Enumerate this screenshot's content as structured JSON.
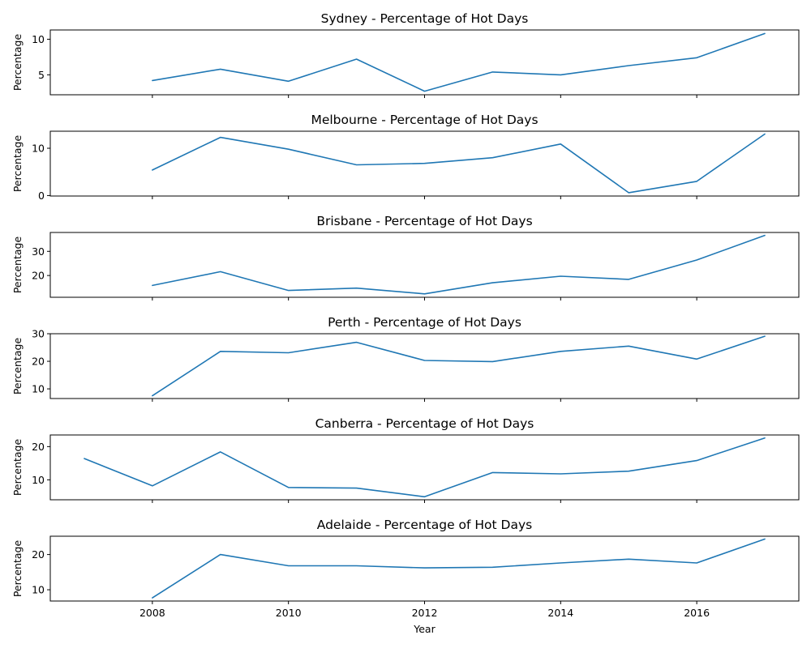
{
  "chart_data": {
    "type": "line",
    "xlabel": "Year",
    "xlim": [
      2006.5,
      2017.5
    ],
    "x_ticks": [
      2008,
      2010,
      2012,
      2014,
      2016
    ],
    "line_color": "#1f77b4",
    "shared_x": true,
    "panels": [
      {
        "title": "Sydney - Percentage of Hot Days",
        "ylabel": "Percentage",
        "ylim": [
          2.2,
          11.3
        ],
        "y_ticks": [
          5,
          10
        ],
        "x": [
          2008,
          2009,
          2010,
          2011,
          2012,
          2013,
          2014,
          2015,
          2016,
          2017
        ],
        "values": [
          4.2,
          5.8,
          4.1,
          7.2,
          2.7,
          5.4,
          5.0,
          6.3,
          7.4,
          10.8
        ]
      },
      {
        "title": "Melbourne - Percentage of Hot Days",
        "ylabel": "Percentage",
        "ylim": [
          -0.1,
          13.6
        ],
        "y_ticks": [
          0,
          10
        ],
        "x": [
          2008,
          2009,
          2010,
          2011,
          2012,
          2013,
          2014,
          2015,
          2016,
          2017
        ],
        "values": [
          5.4,
          12.3,
          9.8,
          6.5,
          6.8,
          8.0,
          10.9,
          0.6,
          3.0,
          13.0
        ]
      },
      {
        "title": "Brisbane - Percentage of Hot Days",
        "ylabel": "Percentage",
        "ylim": [
          11.0,
          37.8
        ],
        "y_ticks": [
          20,
          30
        ],
        "x": [
          2008,
          2009,
          2010,
          2011,
          2012,
          2013,
          2014,
          2015,
          2016,
          2017
        ],
        "values": [
          15.9,
          21.6,
          13.8,
          14.8,
          12.4,
          17.0,
          19.7,
          18.4,
          26.4,
          36.6
        ]
      },
      {
        "title": "Perth - Percentage of Hot Days",
        "ylabel": "Percentage",
        "ylim": [
          6.5,
          30.0
        ],
        "y_ticks": [
          10,
          20,
          30
        ],
        "x": [
          2008,
          2009,
          2010,
          2011,
          2012,
          2013,
          2014,
          2015,
          2016,
          2017
        ],
        "values": [
          7.5,
          23.6,
          23.1,
          26.9,
          20.3,
          19.9,
          23.6,
          25.5,
          20.8,
          29.1
        ]
      },
      {
        "title": "Canberra - Percentage of Hot Days",
        "ylabel": "Percentage",
        "ylim": [
          4.0,
          23.5
        ],
        "y_ticks": [
          10,
          20
        ],
        "x": [
          2007,
          2008,
          2009,
          2010,
          2011,
          2012,
          2013,
          2014,
          2015,
          2016,
          2017
        ],
        "values": [
          16.4,
          8.2,
          18.4,
          7.7,
          7.5,
          4.9,
          12.2,
          11.8,
          12.6,
          15.8,
          22.6
        ]
      },
      {
        "title": "Adelaide - Percentage of Hot Days",
        "ylabel": "Percentage",
        "ylim": [
          6.8,
          25.2
        ],
        "y_ticks": [
          10,
          20
        ],
        "x": [
          2008,
          2009,
          2010,
          2011,
          2012,
          2013,
          2014,
          2015,
          2016,
          2017
        ],
        "values": [
          7.7,
          20.0,
          16.8,
          16.8,
          16.2,
          16.4,
          17.6,
          18.7,
          17.6,
          24.4
        ]
      }
    ]
  }
}
